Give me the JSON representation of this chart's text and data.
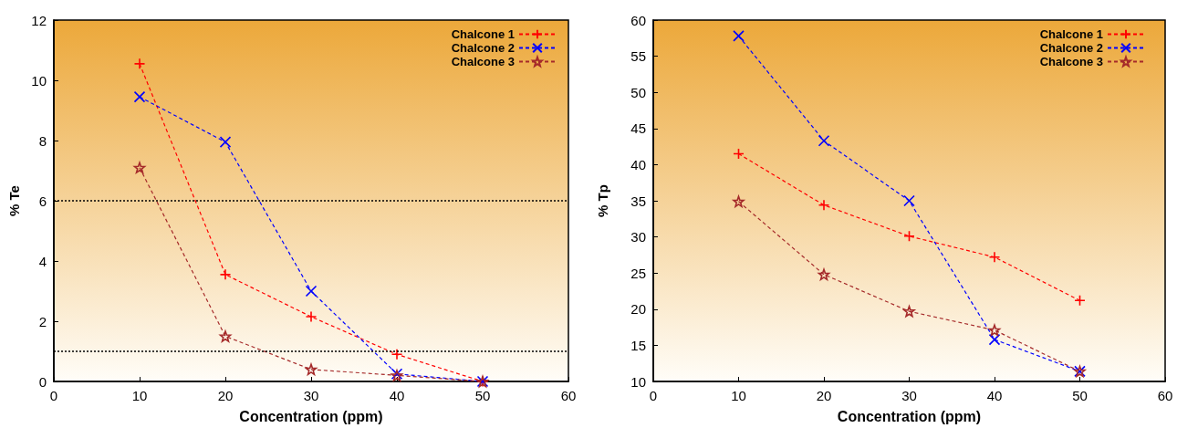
{
  "chart_data": [
    {
      "type": "line",
      "xlabel": "Concentration (ppm)",
      "ylabel": "% Te",
      "x": [
        10,
        20,
        30,
        40,
        50
      ],
      "xlim": [
        0,
        60
      ],
      "xticks": [
        0,
        10,
        20,
        30,
        40,
        50,
        60
      ],
      "ylim": [
        0,
        12
      ],
      "yticks": [
        0,
        2,
        4,
        6,
        8,
        10,
        12
      ],
      "grid": false,
      "legend": "top right",
      "line_style": "dashed",
      "series": [
        {
          "name": "Chalcone 1",
          "color": "#ff0000",
          "marker": "cross",
          "values": [
            10.55,
            3.55,
            2.15,
            0.9,
            0
          ]
        },
        {
          "name": "Chalcone 2",
          "color": "#0000ff",
          "marker": "x",
          "values": [
            9.45,
            7.95,
            3.0,
            0.25,
            0
          ]
        },
        {
          "name": "Chalcone 3",
          "color": "#a52a2a",
          "marker": "star",
          "values": [
            7.1,
            1.5,
            0.4,
            0.2,
            0
          ]
        }
      ],
      "ref_lines": [
        {
          "axis": "y",
          "value": 6,
          "label": null,
          "line_style": "dotted"
        },
        {
          "axis": "y",
          "value": 1,
          "label": null,
          "line_style": "dotted"
        }
      ]
    },
    {
      "type": "line",
      "xlabel": "Concentration (ppm)",
      "ylabel": "% Tp",
      "x": [
        10,
        20,
        30,
        40,
        50
      ],
      "xlim": [
        0,
        60
      ],
      "xticks": [
        0,
        10,
        20,
        30,
        40,
        50,
        60
      ],
      "ylim": [
        10,
        60
      ],
      "yticks": [
        10,
        15,
        20,
        25,
        30,
        35,
        40,
        45,
        50,
        55,
        60
      ],
      "grid": false,
      "legend": "top right",
      "line_style": "dashed",
      "series": [
        {
          "name": "Chalcone 1",
          "color": "#ff0000",
          "marker": "cross",
          "values": [
            41.5,
            34.4,
            30.1,
            27.2,
            21.2
          ]
        },
        {
          "name": "Chalcone 2",
          "color": "#0000ff",
          "marker": "x",
          "values": [
            57.8,
            43.3,
            35.0,
            15.8,
            11.4
          ]
        },
        {
          "name": "Chalcone 3",
          "color": "#a52a2a",
          "marker": "star",
          "values": [
            34.9,
            24.8,
            19.7,
            17.1,
            11.4
          ]
        }
      ]
    }
  ]
}
